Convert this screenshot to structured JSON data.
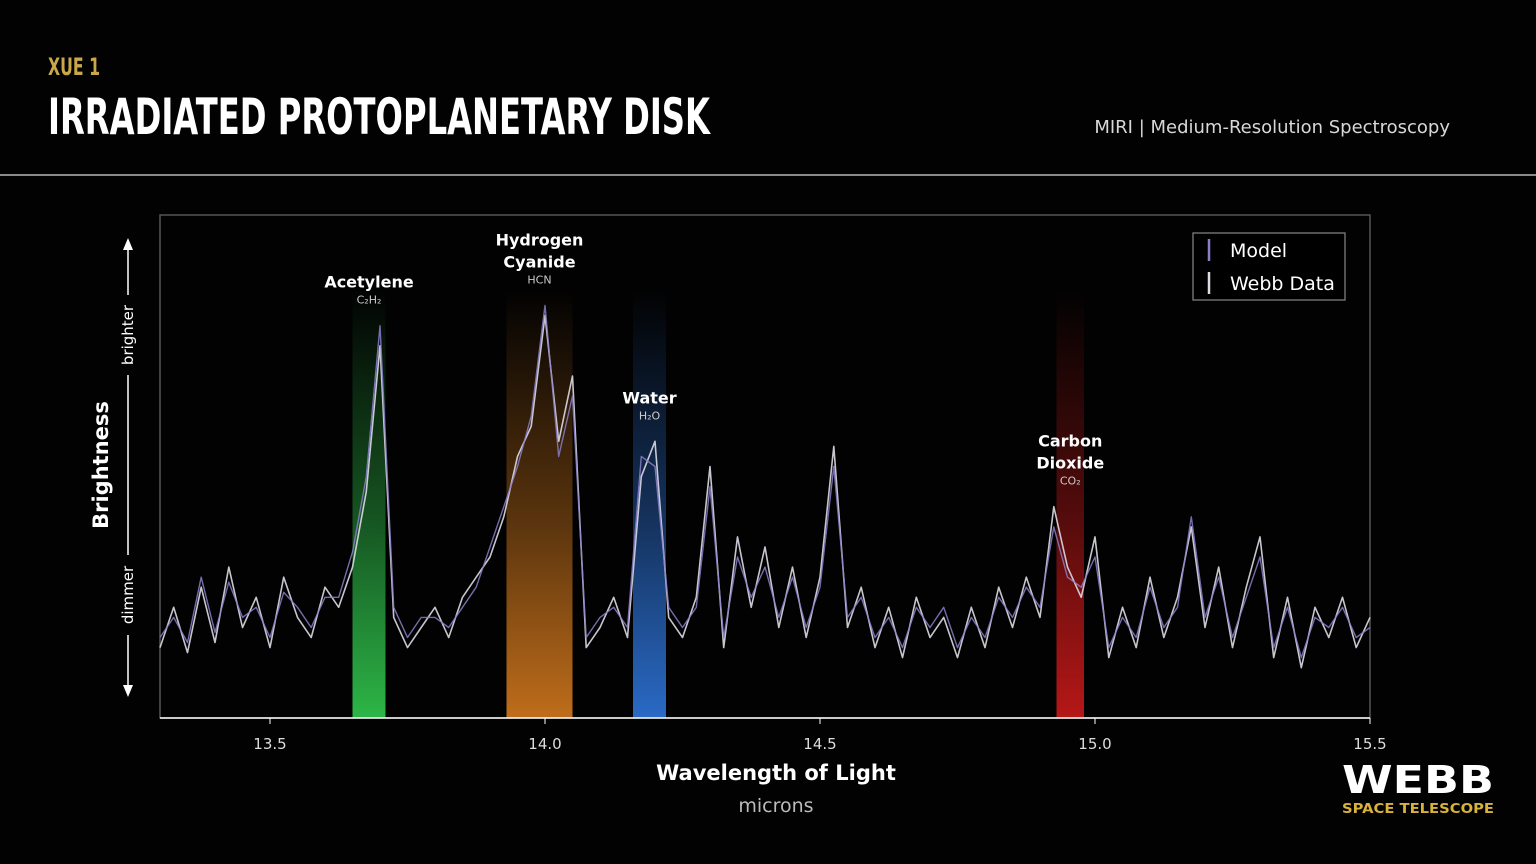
{
  "header": {
    "kicker": "XUE 1",
    "title": "IRRADIATED PROTOPLANETARY DISK",
    "instrument": "MIRI | Medium-Resolution Spectroscopy"
  },
  "logo": {
    "name": "WEBB",
    "subtitle": "SPACE TELESCOPE"
  },
  "chart_data": {
    "type": "line",
    "x_label": "Wavelength of Light",
    "x_unit": "microns",
    "y_label": "Brightness",
    "y_high": "brighter",
    "y_low": "dimmer",
    "xlim": [
      13.3,
      15.5
    ],
    "xticks": [
      13.5,
      {
        "value": 14,
        "label": "14.0"
      },
      14.5,
      {
        "value": 15,
        "label": "15.0"
      },
      15.5
    ],
    "ylim": [
      0,
      100
    ],
    "legend": "upper right",
    "x": [
      13.3,
      13.325,
      13.35,
      13.375,
      13.4,
      13.425,
      13.45,
      13.475,
      13.5,
      13.525,
      13.55,
      13.575,
      13.6,
      13.625,
      13.65,
      13.675,
      13.7,
      13.725,
      13.75,
      13.775,
      13.8,
      13.825,
      13.85,
      13.875,
      13.9,
      13.925,
      13.95,
      13.975,
      14.0,
      14.025,
      14.05,
      14.075,
      14.1,
      14.125,
      14.15,
      14.175,
      14.2,
      14.225,
      14.25,
      14.275,
      14.3,
      14.325,
      14.35,
      14.375,
      14.4,
      14.425,
      14.45,
      14.475,
      14.5,
      14.525,
      14.55,
      14.575,
      14.6,
      14.625,
      14.65,
      14.675,
      14.7,
      14.725,
      14.75,
      14.775,
      14.8,
      14.825,
      14.85,
      14.875,
      14.9,
      14.925,
      14.95,
      14.975,
      15.0,
      15.025,
      15.05,
      15.075,
      15.1,
      15.125,
      15.15,
      15.175,
      15.2,
      15.225,
      15.25,
      15.275,
      15.3,
      15.325,
      15.35,
      15.375,
      15.4,
      15.425,
      15.45,
      15.475,
      15.5
    ],
    "series": [
      {
        "name": "Webb Data",
        "color": "#dcdce4",
        "values": [
          14,
          22,
          13,
          26,
          15,
          30,
          18,
          24,
          14,
          28,
          20,
          16,
          26,
          22,
          30,
          45,
          74,
          20,
          14,
          18,
          22,
          16,
          24,
          28,
          32,
          40,
          52,
          58,
          80,
          55,
          68,
          14,
          18,
          24,
          16,
          48,
          55,
          20,
          16,
          24,
          50,
          14,
          36,
          22,
          34,
          18,
          30,
          16,
          28,
          54,
          18,
          26,
          14,
          22,
          12,
          24,
          16,
          20,
          12,
          22,
          14,
          26,
          18,
          28,
          20,
          42,
          30,
          24,
          36,
          12,
          22,
          14,
          28,
          16,
          24,
          38,
          18,
          30,
          14,
          26,
          36,
          12,
          24,
          10,
          22,
          16,
          24,
          14,
          20
        ]
      },
      {
        "name": "Model",
        "color": "#8b7fc9",
        "values": [
          16,
          20,
          15,
          28,
          17,
          27,
          20,
          22,
          16,
          25,
          22,
          18,
          24,
          24,
          33,
          48,
          78,
          22,
          16,
          20,
          20,
          18,
          22,
          26,
          34,
          42,
          50,
          60,
          82,
          52,
          64,
          16,
          20,
          22,
          18,
          52,
          50,
          22,
          18,
          22,
          46,
          16,
          32,
          24,
          30,
          20,
          28,
          18,
          26,
          50,
          20,
          24,
          16,
          20,
          14,
          22,
          18,
          22,
          14,
          20,
          16,
          24,
          20,
          26,
          22,
          38,
          28,
          26,
          32,
          14,
          20,
          16,
          26,
          18,
          22,
          40,
          20,
          28,
          16,
          24,
          32,
          14,
          22,
          12,
          20,
          18,
          22,
          16,
          18
        ]
      }
    ],
    "bands": [
      {
        "lines": [
          "Acetylene"
        ],
        "formula": "C₂H₂",
        "range": [
          13.65,
          13.71
        ],
        "color": "#2fbf4a"
      },
      {
        "lines": [
          "Hydrogen",
          "Cyanide"
        ],
        "formula": "HCN",
        "range": [
          13.93,
          14.05
        ],
        "color": "#c9731c"
      },
      {
        "lines": [
          "Water"
        ],
        "formula": "H₂O",
        "range": [
          14.16,
          14.22
        ],
        "color": "#2c6fd0"
      },
      {
        "lines": [
          "Carbon",
          "Dioxide"
        ],
        "formula": "CO₂",
        "range": [
          14.93,
          14.98
        ],
        "color": "#c01818"
      }
    ]
  }
}
